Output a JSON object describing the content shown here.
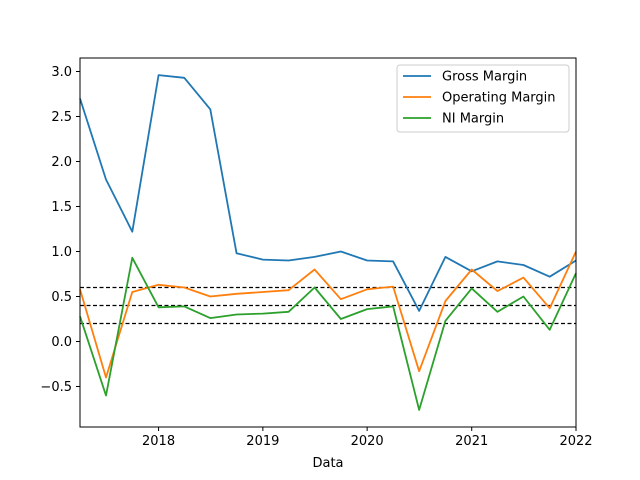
{
  "chart_data": {
    "type": "line",
    "xlabel": "Data",
    "ylabel": "",
    "xlim": [
      "2017-04-01",
      "2022-01-01"
    ],
    "ylim": [
      -0.95,
      3.15
    ],
    "x_ticks": [
      "2018-01-01",
      "2019-01-01",
      "2020-01-01",
      "2021-01-01",
      "2022-01-01"
    ],
    "x_tick_labels": [
      "2018",
      "2019",
      "2020",
      "2021",
      "2022"
    ],
    "y_ticks": [
      -0.5,
      0.0,
      0.5,
      1.0,
      1.5,
      2.0,
      2.5,
      3.0
    ],
    "y_tick_labels": [
      "−0.5",
      "0.0",
      "0.5",
      "1.0",
      "1.5",
      "2.0",
      "2.5",
      "3.0"
    ],
    "x": [
      "2017-04-01",
      "2017-07-01",
      "2017-10-01",
      "2018-01-01",
      "2018-04-01",
      "2018-07-01",
      "2018-10-01",
      "2019-01-01",
      "2019-04-01",
      "2019-07-01",
      "2019-10-01",
      "2020-01-01",
      "2020-04-01",
      "2020-07-01",
      "2020-10-01",
      "2021-01-01",
      "2021-04-01",
      "2021-07-01",
      "2021-10-01",
      "2022-01-01"
    ],
    "series": [
      {
        "name": "Gross Margin",
        "color": "#1f77b4",
        "values": [
          2.7,
          1.8,
          1.22,
          2.96,
          2.93,
          2.58,
          0.98,
          0.91,
          0.9,
          0.94,
          1.0,
          0.9,
          0.89,
          0.34,
          0.94,
          0.78,
          0.89,
          0.85,
          0.72,
          0.9
        ]
      },
      {
        "name": "Operating Margin",
        "color": "#ff7f0e",
        "values": [
          0.58,
          -0.4,
          0.55,
          0.63,
          0.6,
          0.5,
          0.53,
          0.55,
          0.57,
          0.8,
          0.47,
          0.58,
          0.61,
          -0.33,
          0.45,
          0.8,
          0.56,
          0.71,
          0.37,
          1.0
        ]
      },
      {
        "name": "NI Margin",
        "color": "#2ca02c",
        "values": [
          0.28,
          -0.6,
          0.93,
          0.38,
          0.39,
          0.26,
          0.3,
          0.31,
          0.33,
          0.6,
          0.25,
          0.36,
          0.39,
          -0.76,
          0.23,
          0.59,
          0.33,
          0.5,
          0.13,
          0.76
        ]
      }
    ],
    "reference_lines": [
      {
        "y": 0.6,
        "style": "dashed",
        "color": "#000000"
      },
      {
        "y": 0.4,
        "style": "dashed",
        "color": "#000000"
      },
      {
        "y": 0.2,
        "style": "dashed",
        "color": "#000000"
      }
    ],
    "legend_position": "top-right",
    "grid": false
  }
}
